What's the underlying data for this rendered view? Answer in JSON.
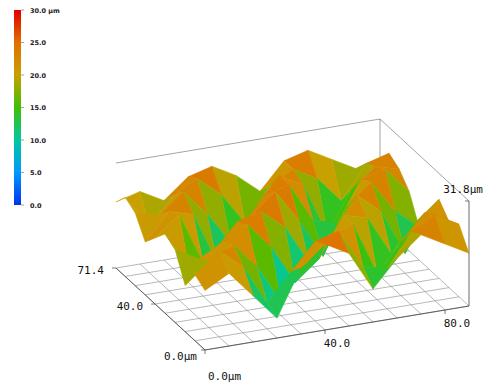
{
  "chart_data": {
    "type": "surface",
    "x": [
      0,
      8,
      16,
      24,
      32,
      40,
      48,
      56,
      64,
      72,
      80,
      88
    ],
    "y": [
      0,
      8,
      16,
      24,
      32,
      40,
      48,
      56,
      64,
      71.4
    ],
    "cells": [
      [
        18,
        22,
        14,
        6,
        20,
        26,
        22,
        10,
        18,
        24,
        20,
        16
      ],
      [
        20,
        26,
        20,
        8,
        16,
        24,
        26,
        14,
        12,
        22,
        26,
        22
      ],
      [
        14,
        20,
        24,
        16,
        4,
        14,
        22,
        24,
        8,
        16,
        24,
        20
      ],
      [
        22,
        18,
        22,
        26,
        18,
        6,
        12,
        24,
        22,
        10,
        18,
        24
      ],
      [
        24,
        12,
        16,
        24,
        26,
        20,
        8,
        16,
        26,
        20,
        6,
        18
      ],
      [
        20,
        26,
        10,
        14,
        22,
        28,
        18,
        6,
        20,
        26,
        16,
        10
      ],
      [
        16,
        24,
        22,
        6,
        16,
        24,
        26,
        14,
        12,
        24,
        26,
        18
      ],
      [
        22,
        20,
        26,
        18,
        8,
        18,
        26,
        22,
        6,
        18,
        24,
        22
      ],
      [
        24,
        14,
        22,
        26,
        20,
        10,
        20,
        24,
        20,
        12,
        22,
        24
      ],
      [
        20,
        22,
        18,
        24,
        26,
        22,
        16,
        24,
        26,
        22,
        18,
        20
      ]
    ],
    "xlim": [
      0,
      88
    ],
    "ylim": [
      0,
      71.4
    ],
    "zlim": [
      0,
      31.8
    ],
    "xticks": [
      {
        "value": 0,
        "label": "0.0µm"
      },
      {
        "value": 40,
        "label": "40.0"
      },
      {
        "value": 80,
        "label": "80.0"
      }
    ],
    "yticks": [
      {
        "value": 0,
        "label": "0.0µm"
      },
      {
        "value": 40,
        "label": "40.0"
      },
      {
        "value": 71.4,
        "label": "71.4"
      }
    ],
    "zticks": [
      {
        "value": 31.8,
        "label": "31.8µm"
      }
    ],
    "colorbar_range": [
      0,
      30
    ],
    "colorbar_ticks": [
      {
        "value": 30,
        "label": "30.0 µm"
      },
      {
        "value": 25,
        "label": "25.0"
      },
      {
        "value": 20,
        "label": "20.0"
      },
      {
        "value": 15,
        "label": "15.0"
      },
      {
        "value": 10,
        "label": "10.0"
      },
      {
        "value": 5,
        "label": "5.0"
      },
      {
        "value": 0,
        "label": "0.0"
      }
    ],
    "grid": true
  }
}
